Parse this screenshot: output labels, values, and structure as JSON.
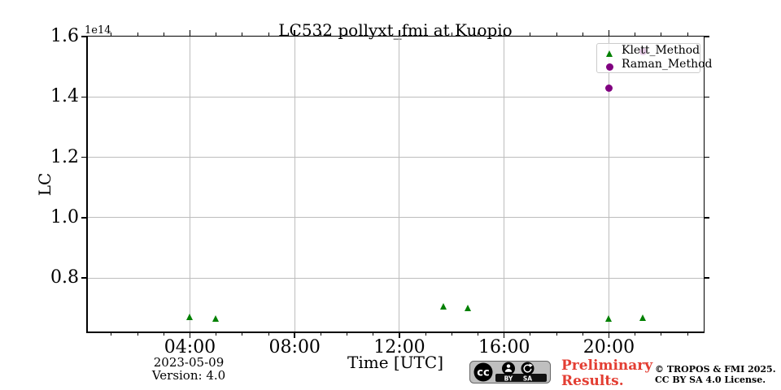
{
  "chart_data": {
    "type": "scatter",
    "title": "LC532 pollyxt_fmi at Kuopio",
    "xlabel": "Time [UTC]",
    "ylabel": "LC",
    "y_offset_factor": "1e14",
    "grid": true,
    "xlim_hours": [
      0.07,
      23.62
    ],
    "ylim": [
      0.62,
      1.6
    ],
    "x_major_ticks": [
      {
        "hour": 4,
        "label": "04:00"
      },
      {
        "hour": 8,
        "label": "08:00"
      },
      {
        "hour": 12,
        "label": "12:00"
      },
      {
        "hour": 16,
        "label": "16:00"
      },
      {
        "hour": 20,
        "label": "20:00"
      }
    ],
    "x_minor_tick_hours": [
      1,
      2,
      3,
      5,
      6,
      7,
      9,
      10,
      11,
      13,
      14,
      15,
      17,
      18,
      19,
      21,
      22,
      23
    ],
    "y_ticks": [
      {
        "value": 0.8,
        "label": "0.8"
      },
      {
        "value": 1.0,
        "label": "1.0"
      },
      {
        "value": 1.2,
        "label": "1.2"
      },
      {
        "value": 1.4,
        "label": "1.4"
      },
      {
        "value": 1.6,
        "label": "1.6"
      }
    ],
    "legend": {
      "position": "upper right",
      "entries": [
        {
          "label": "Klett_Method",
          "marker": "triangle",
          "color": "#008000"
        },
        {
          "label": "Raman_Method",
          "marker": "circle",
          "color": "#800080"
        }
      ]
    },
    "series": [
      {
        "name": "Klett_Method",
        "marker": "triangle",
        "color": "#008000",
        "points": [
          {
            "hour": 4.0,
            "time": "04:00",
            "value_1e14": 0.67
          },
          {
            "hour": 5.0,
            "time": "05:00",
            "value_1e14": 0.667
          },
          {
            "hour": 13.68,
            "time": "13:41",
            "value_1e14": 0.705
          },
          {
            "hour": 14.64,
            "time": "14:38",
            "value_1e14": 0.701
          },
          {
            "hour": 20.0,
            "time": "20:00",
            "value_1e14": 0.666
          },
          {
            "hour": 21.3,
            "time": "21:18",
            "value_1e14": 0.668
          }
        ]
      },
      {
        "name": "Raman_Method",
        "marker": "circle",
        "color": "#800080",
        "points": [
          {
            "hour": 20.0,
            "time": "20:00",
            "value_1e14": 1.43
          },
          {
            "hour": 21.3,
            "time": "21:18",
            "value_1e14": 1.55
          }
        ]
      }
    ]
  },
  "footer": {
    "date": "2023-05-09",
    "version": "Version: 4.0",
    "watermark_line1": "Preliminary",
    "watermark_line2": "Results.",
    "watermark_color": "#e33e33",
    "badge": {
      "cc": "cc",
      "by": "BY",
      "sa": "SA"
    },
    "copyright_line1": "© TROPOS & FMI 2025.",
    "copyright_line2": "CC BY SA 4.0 License."
  }
}
